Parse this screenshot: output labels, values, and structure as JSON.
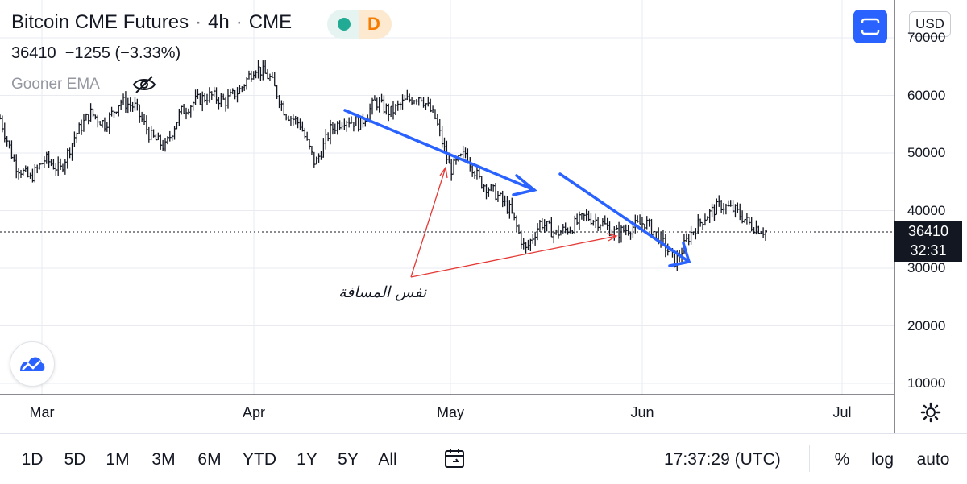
{
  "header": {
    "symbol": "Bitcoin CME Futures",
    "interval": "4h",
    "exchange": "CME",
    "session_badge": "D",
    "last_price": "36410",
    "change": "−1255",
    "change_pct": "(−3.33%)",
    "indicator_name": "Gooner EMA",
    "indicator_hidden_icon": "eye-crossed-icon"
  },
  "toolbar_right": {
    "fullscreen_icon": "fullscreen-icon",
    "currency": "USD"
  },
  "price_axis": {
    "ticks": [
      "70000",
      "60000",
      "50000",
      "40000",
      "30000",
      "20000",
      "10000"
    ],
    "last_price_badge": "36410",
    "countdown": "32:31"
  },
  "time_axis": {
    "labels": [
      "Mar",
      "Apr",
      "May",
      "Jun",
      "Jul"
    ]
  },
  "annotation": {
    "text": "نفس المسافة",
    "arrow_color": "#2962ff",
    "guide_color": "#e53935"
  },
  "chart_data": {
    "type": "line",
    "ylim": [
      10000,
      70000
    ],
    "x_axis": [
      "Mar",
      "Apr",
      "May",
      "Jun",
      "Jul"
    ],
    "last_value": 36410,
    "series": [
      {
        "values": [
          56000,
          48000,
          45500,
          49000,
          47000,
          53000,
          57000,
          55000,
          59000,
          58000,
          53000,
          51000,
          57000,
          59000,
          60000,
          59000,
          61000,
          65000,
          63000,
          57000,
          55000,
          48000,
          54000,
          56000,
          55000,
          59000,
          57000,
          59000,
          60000,
          56000,
          47000,
          50000,
          45000,
          43000,
          40000,
          33000,
          38000,
          36000,
          37000,
          39000,
          38000,
          36000,
          37000,
          38000,
          35000,
          31000,
          36000,
          39000,
          41000,
          40000,
          37500,
          36410
        ]
      }
    ]
  },
  "bottom_bar": {
    "ranges": [
      "1D",
      "5D",
      "1M",
      "3M",
      "6M",
      "YTD",
      "1Y",
      "5Y",
      "All"
    ],
    "calendar_icon": "calendar-goto-icon",
    "time": "17:37:29 (UTC)",
    "options": [
      "%",
      "log",
      "auto"
    ]
  }
}
